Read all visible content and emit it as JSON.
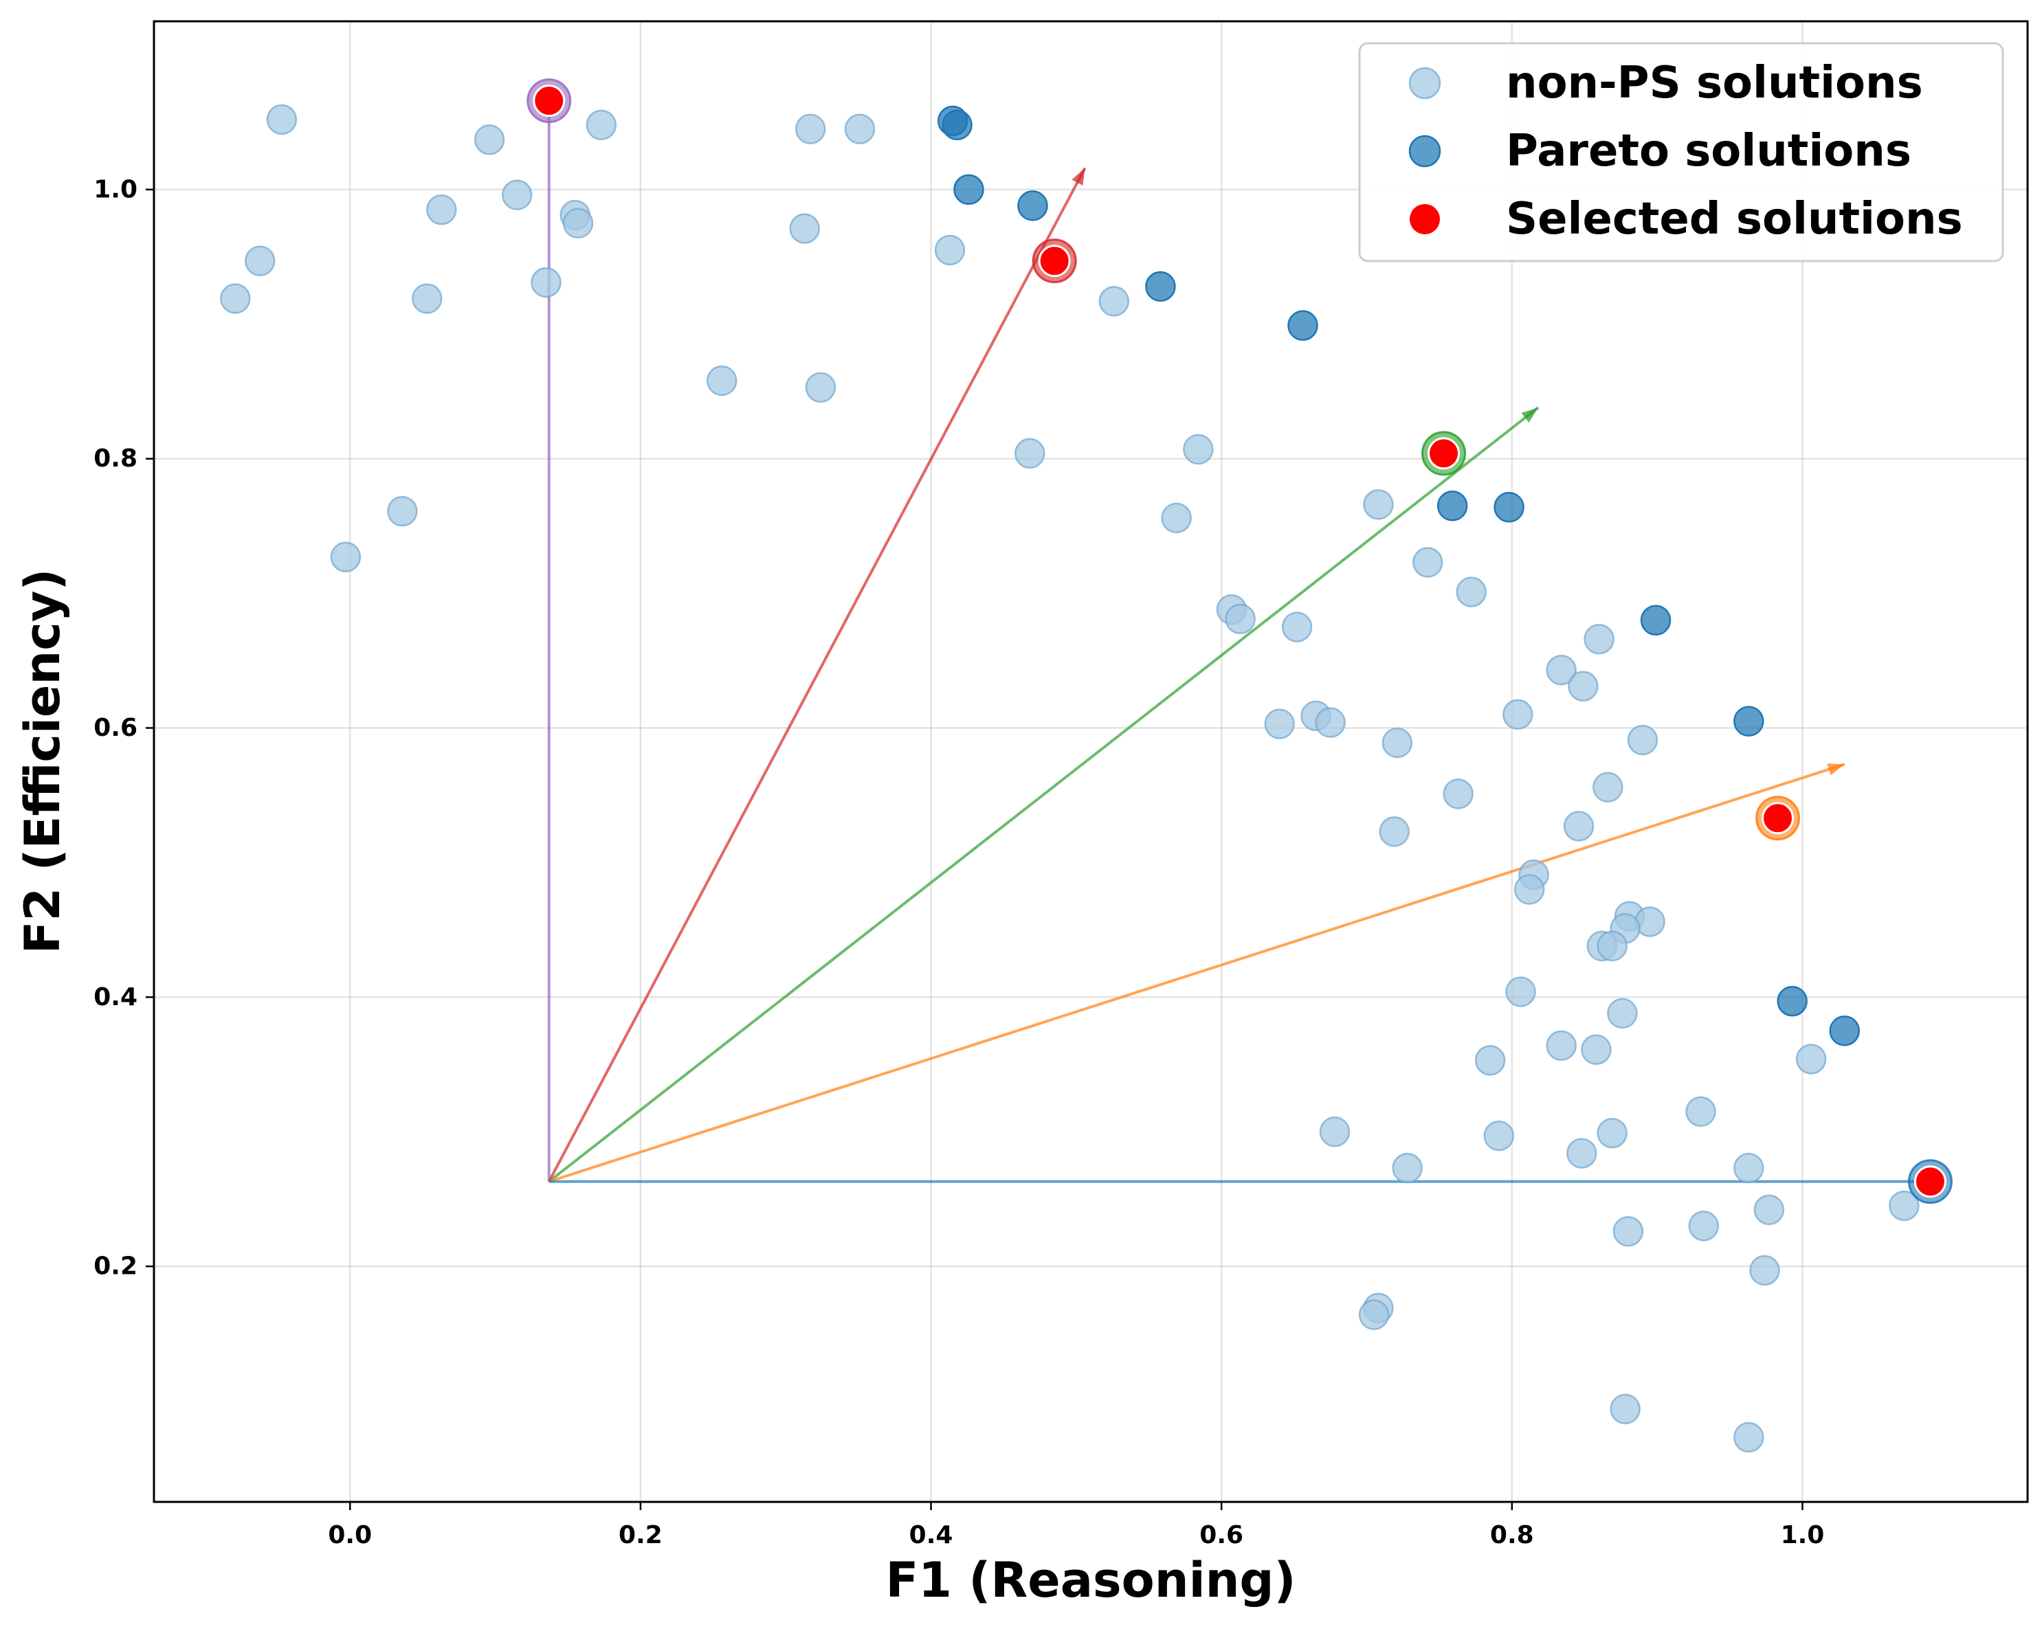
{
  "chart_data": {
    "type": "scatter",
    "xlabel": "F1 (Reasoning)",
    "ylabel": "F2 (Efficiency)",
    "xlim": [
      -0.135,
      1.155
    ],
    "ylim": [
      0.025,
      1.125
    ],
    "xticks": [
      0.0,
      0.2,
      0.4,
      0.6,
      0.8,
      1.0
    ],
    "yticks": [
      0.2,
      0.4,
      0.6,
      0.8,
      1.0
    ],
    "xtick_labels": [
      "0.0",
      "0.2",
      "0.4",
      "0.6",
      "0.8",
      "1.0"
    ],
    "ytick_labels": [
      "0.2",
      "0.4",
      "0.6",
      "0.8",
      "1.0"
    ],
    "grid": true,
    "legend_position": "top-right",
    "colors": {
      "non_ps": "#a6c8e3",
      "pareto": "#1f77b4",
      "selected": "#ff0000",
      "purple": "#9467bd",
      "red": "#d62728",
      "green": "#2ca02c",
      "orange": "#ff7f0e",
      "blue": "#1f77b4"
    },
    "reference_point": [
      0.137,
      0.263
    ],
    "series": [
      {
        "name": "non-PS solutions",
        "points": [
          [
            -0.047,
            1.052
          ],
          [
            0.096,
            1.037
          ],
          [
            0.173,
            1.048
          ],
          [
            0.115,
            0.996
          ],
          [
            0.063,
            0.985
          ],
          [
            -0.062,
            0.947
          ],
          [
            -0.079,
            0.919
          ],
          [
            0.053,
            0.919
          ],
          [
            0.135,
            0.931
          ],
          [
            0.155,
            0.981
          ],
          [
            0.157,
            0.975
          ],
          [
            0.317,
            1.045
          ],
          [
            0.351,
            1.045
          ],
          [
            0.313,
            0.971
          ],
          [
            0.413,
            0.955
          ],
          [
            0.256,
            0.858
          ],
          [
            0.324,
            0.853
          ],
          [
            0.036,
            0.761
          ],
          [
            -0.003,
            0.727
          ],
          [
            0.468,
            0.804
          ],
          [
            0.526,
            0.917
          ],
          [
            0.584,
            0.807
          ],
          [
            0.569,
            0.756
          ],
          [
            0.607,
            0.688
          ],
          [
            0.613,
            0.681
          ],
          [
            0.652,
            0.675
          ],
          [
            0.64,
            0.603
          ],
          [
            0.665,
            0.609
          ],
          [
            0.675,
            0.604
          ],
          [
            0.708,
            0.766
          ],
          [
            0.742,
            0.723
          ],
          [
            0.772,
            0.701
          ],
          [
            0.721,
            0.589
          ],
          [
            0.719,
            0.523
          ],
          [
            0.763,
            0.551
          ],
          [
            0.804,
            0.61
          ],
          [
            0.834,
            0.643
          ],
          [
            0.849,
            0.631
          ],
          [
            0.86,
            0.666
          ],
          [
            0.89,
            0.591
          ],
          [
            0.866,
            0.556
          ],
          [
            0.846,
            0.527
          ],
          [
            0.815,
            0.491
          ],
          [
            0.812,
            0.48
          ],
          [
            0.881,
            0.46
          ],
          [
            0.895,
            0.456
          ],
          [
            0.878,
            0.451
          ],
          [
            0.862,
            0.438
          ],
          [
            0.869,
            0.438
          ],
          [
            0.806,
            0.404
          ],
          [
            0.876,
            0.388
          ],
          [
            0.834,
            0.364
          ],
          [
            0.858,
            0.361
          ],
          [
            0.785,
            0.353
          ],
          [
            0.678,
            0.3
          ],
          [
            0.728,
            0.273
          ],
          [
            0.791,
            0.297
          ],
          [
            0.869,
            0.299
          ],
          [
            0.848,
            0.284
          ],
          [
            0.93,
            0.315
          ],
          [
            0.963,
            0.273
          ],
          [
            1.006,
            0.354
          ],
          [
            0.977,
            0.242
          ],
          [
            1.07,
            0.245
          ],
          [
            0.88,
            0.226
          ],
          [
            0.932,
            0.23
          ],
          [
            0.974,
            0.197
          ],
          [
            0.708,
            0.169
          ],
          [
            0.705,
            0.164
          ],
          [
            0.878,
            0.094
          ],
          [
            0.963,
            0.073
          ]
        ]
      },
      {
        "name": "Pareto solutions",
        "points": [
          [
            0.415,
            1.051
          ],
          [
            0.418,
            1.048
          ],
          [
            0.426,
            1.0
          ],
          [
            0.47,
            0.988
          ],
          [
            0.558,
            0.928
          ],
          [
            0.656,
            0.899
          ],
          [
            0.759,
            0.765
          ],
          [
            0.798,
            0.764
          ],
          [
            0.899,
            0.68
          ],
          [
            0.963,
            0.605
          ],
          [
            0.993,
            0.397
          ],
          [
            1.029,
            0.375
          ]
        ]
      },
      {
        "name": "Selected solutions",
        "points": [
          [
            0.137,
            1.066
          ],
          [
            0.485,
            0.947
          ],
          [
            0.753,
            0.804
          ],
          [
            0.983,
            0.533
          ],
          [
            1.088,
            0.263
          ]
        ],
        "ring_colors": [
          "purple",
          "red",
          "green",
          "orange",
          "blue"
        ]
      }
    ],
    "direction_arrows": [
      {
        "color": "purple",
        "from": [
          0.137,
          0.263
        ],
        "to": [
          0.137,
          1.066
        ],
        "arrowhead": false
      },
      {
        "color": "red",
        "from": [
          0.137,
          0.263
        ],
        "to": [
          0.506,
          1.016
        ],
        "arrowhead": true
      },
      {
        "color": "green",
        "from": [
          0.137,
          0.263
        ],
        "to": [
          0.818,
          0.838
        ],
        "arrowhead": true
      },
      {
        "color": "orange",
        "from": [
          0.137,
          0.263
        ],
        "to": [
          1.029,
          0.573
        ],
        "arrowhead": true
      },
      {
        "color": "blue",
        "from": [
          0.137,
          0.263
        ],
        "to": [
          1.088,
          0.263
        ],
        "arrowhead": false
      }
    ]
  }
}
